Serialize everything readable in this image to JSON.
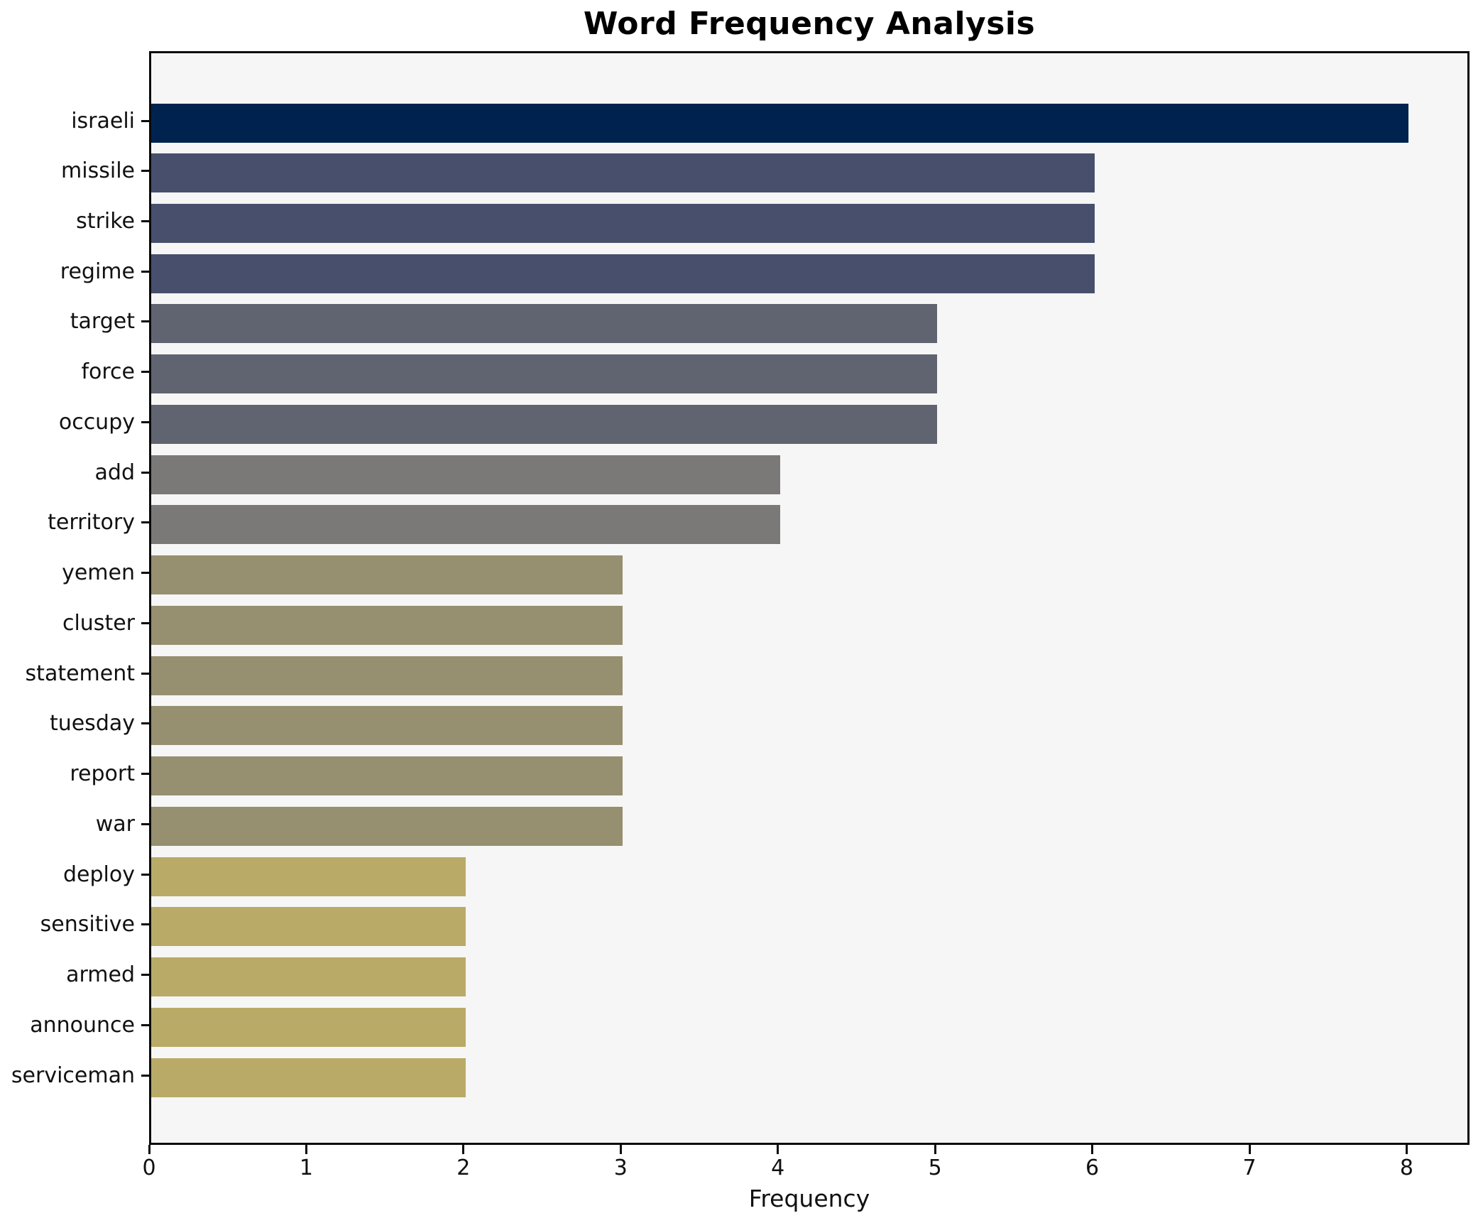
{
  "chart_data": {
    "type": "bar",
    "orientation": "horizontal",
    "title": "Word Frequency Analysis",
    "xlabel": "Frequency",
    "ylabel": "",
    "categories": [
      "israeli",
      "missile",
      "strike",
      "regime",
      "target",
      "force",
      "occupy",
      "add",
      "territory",
      "yemen",
      "cluster",
      "statement",
      "tuesday",
      "report",
      "war",
      "deploy",
      "sensitive",
      "armed",
      "announce",
      "serviceman"
    ],
    "values": [
      8,
      6,
      6,
      6,
      5,
      5,
      5,
      4,
      4,
      3,
      3,
      3,
      3,
      3,
      3,
      2,
      2,
      2,
      2,
      2
    ],
    "bar_colors": [
      "#00224e",
      "#474f6d",
      "#474f6d",
      "#474f6d",
      "#606470",
      "#606470",
      "#606470",
      "#7a7977",
      "#7a7977",
      "#968f70",
      "#968f70",
      "#968f70",
      "#968f70",
      "#968f70",
      "#968f70",
      "#b9aa67",
      "#b9aa67",
      "#b9aa67",
      "#b9aa67",
      "#b9aa67"
    ],
    "x_ticks": [
      "0",
      "1",
      "2",
      "3",
      "4",
      "5",
      "6",
      "7",
      "8"
    ],
    "xlim": [
      0,
      8.4
    ],
    "grid": false,
    "legend": null,
    "plot_background": "#f5f6f5",
    "figure_background": "#ffffff",
    "spine_color": "#0a0a0a",
    "bar_height_fraction": 0.8
  }
}
